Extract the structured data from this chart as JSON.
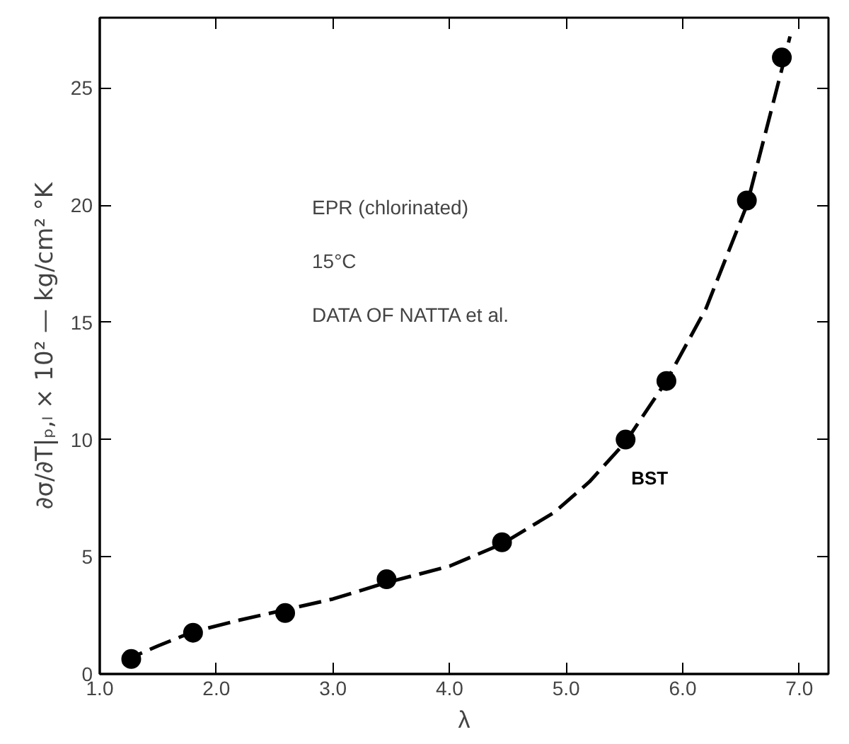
{
  "chart_data": {
    "type": "scatter",
    "xlabel": "λ",
    "ylabel": "∂σ/∂T|ₚ,ₗ × 10² — kg/cm² °K",
    "xlim": [
      1.0,
      7.25
    ],
    "ylim": [
      0,
      28
    ],
    "xticks": [
      {
        "value": 1,
        "label": "1.0"
      },
      {
        "value": 2,
        "label": "2.0"
      },
      {
        "value": 3,
        "label": "3.0"
      },
      {
        "value": 4,
        "label": "4.0"
      },
      {
        "value": 5,
        "label": "5.0"
      },
      {
        "value": 6,
        "label": "6.0"
      },
      {
        "value": 7,
        "label": "7.0"
      }
    ],
    "yticks": [
      0,
      5,
      10,
      15,
      20,
      25
    ],
    "grid": false,
    "series": [
      {
        "color": "#000000",
        "marker": "circle",
        "x": [
          1.27,
          1.8,
          2.59,
          3.46,
          4.45,
          5.51,
          5.86,
          6.55,
          6.85
        ],
        "values": [
          0.64,
          1.76,
          2.6,
          4.04,
          5.62,
          10.0,
          12.5,
          20.2,
          26.3
        ]
      },
      {
        "type": "line",
        "name": "BST",
        "color": "#000000",
        "marker": "none",
        "line_style": "dashed",
        "x": [
          1.2,
          1.27,
          1.5,
          1.8,
          2.2,
          2.6,
          3.0,
          3.46,
          4.0,
          4.45,
          4.9,
          5.2,
          5.51,
          5.86,
          6.2,
          6.55,
          6.85,
          6.92
        ],
        "values": [
          0.4,
          0.7,
          1.2,
          1.8,
          2.3,
          2.75,
          3.2,
          3.9,
          4.6,
          5.55,
          6.9,
          8.2,
          9.9,
          12.5,
          15.6,
          20.0,
          25.8,
          27.2
        ]
      }
    ],
    "annotations": [
      "EPR (chlorinated)",
      "15°C",
      "DATA OF NATTA et al."
    ]
  }
}
